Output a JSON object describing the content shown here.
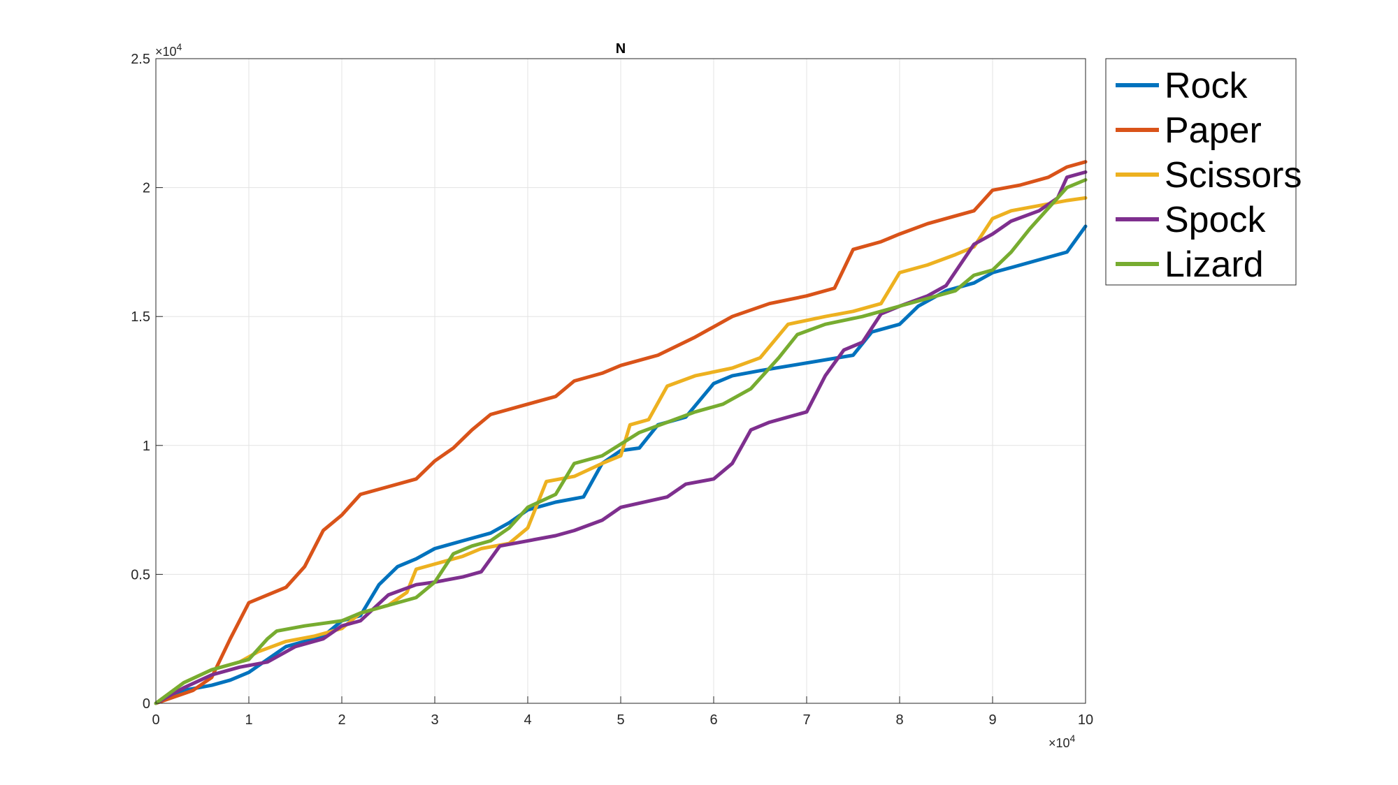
{
  "chart_data": {
    "type": "line",
    "title": "N",
    "xlabel": "",
    "ylabel": "",
    "xlim": [
      0,
      100000
    ],
    "ylim": [
      0,
      25000
    ],
    "x_ticks": [
      0,
      10000,
      20000,
      30000,
      40000,
      50000,
      60000,
      70000,
      80000,
      90000,
      100000
    ],
    "x_tick_labels": [
      "0",
      "1",
      "2",
      "3",
      "4",
      "5",
      "6",
      "7",
      "8",
      "9",
      "10"
    ],
    "y_ticks": [
      0,
      5000,
      10000,
      15000,
      20000,
      25000
    ],
    "y_tick_labels": [
      "0",
      "0.5",
      "1",
      "1.5",
      "2",
      "2.5"
    ],
    "x_exponent_base": "×10",
    "x_exponent_power": "4",
    "y_exponent_base": "×10",
    "y_exponent_power": "4",
    "grid": true,
    "legend_position": "outside-top-right",
    "series": [
      {
        "name": "Rock",
        "color": "#0072BD",
        "x": [
          0,
          3000,
          6000,
          8000,
          10000,
          12000,
          14000,
          16000,
          18000,
          20000,
          22000,
          24000,
          26000,
          28000,
          30000,
          33000,
          36000,
          38000,
          40000,
          43000,
          46000,
          48000,
          50000,
          52000,
          54000,
          57000,
          60000,
          62000,
          65000,
          70000,
          75000,
          77000,
          80000,
          82000,
          85000,
          88000,
          90000,
          92000,
          95000,
          98000,
          100000
        ],
        "y": [
          0,
          500,
          700,
          900,
          1200,
          1700,
          2200,
          2400,
          2600,
          3200,
          3400,
          4600,
          5300,
          5600,
          6000,
          6300,
          6600,
          7000,
          7500,
          7800,
          8000,
          9300,
          9800,
          9900,
          10800,
          11100,
          12400,
          12700,
          12900,
          13200,
          13500,
          14400,
          14700,
          15400,
          16000,
          16300,
          16700,
          16900,
          17200,
          17500,
          18500
        ]
      },
      {
        "name": "Paper",
        "color": "#D95319",
        "x": [
          0,
          4000,
          6000,
          8000,
          10000,
          12000,
          14000,
          16000,
          18000,
          20000,
          22000,
          25000,
          28000,
          30000,
          32000,
          34000,
          36000,
          40000,
          43000,
          45000,
          48000,
          50000,
          54000,
          58000,
          62000,
          66000,
          70000,
          73000,
          75000,
          78000,
          80000,
          83000,
          86000,
          88000,
          90000,
          93000,
          96000,
          98000,
          100000
        ],
        "y": [
          0,
          500,
          1000,
          2500,
          3900,
          4200,
          4500,
          5300,
          6700,
          7300,
          8100,
          8400,
          8700,
          9400,
          9900,
          10600,
          11200,
          11600,
          11900,
          12500,
          12800,
          13100,
          13500,
          14200,
          15000,
          15500,
          15800,
          16100,
          17600,
          17900,
          18200,
          18600,
          18900,
          19100,
          19900,
          20100,
          20400,
          20800,
          21000
        ]
      },
      {
        "name": "Scissors",
        "color": "#EDB120",
        "x": [
          0,
          3000,
          6000,
          9000,
          11000,
          14000,
          17000,
          20000,
          22000,
          25000,
          27000,
          28000,
          30000,
          33000,
          35000,
          38000,
          40000,
          42000,
          45000,
          48000,
          50000,
          51000,
          53000,
          55000,
          58000,
          62000,
          65000,
          68000,
          72000,
          75000,
          78000,
          80000,
          83000,
          86000,
          88000,
          90000,
          92000,
          95000,
          98000,
          100000
        ],
        "y": [
          0,
          800,
          1300,
          1600,
          2000,
          2400,
          2600,
          2900,
          3500,
          3800,
          4300,
          5200,
          5400,
          5700,
          6000,
          6200,
          6800,
          8600,
          8800,
          9300,
          9600,
          10800,
          11000,
          12300,
          12700,
          13000,
          13400,
          14700,
          15000,
          15200,
          15500,
          16700,
          17000,
          17400,
          17700,
          18800,
          19100,
          19300,
          19500,
          19600
        ]
      },
      {
        "name": "Spock",
        "color": "#7E2F8E",
        "x": [
          0,
          3000,
          6000,
          9000,
          12000,
          15000,
          18000,
          20000,
          22000,
          25000,
          28000,
          30000,
          33000,
          35000,
          37000,
          40000,
          43000,
          45000,
          48000,
          50000,
          55000,
          57000,
          60000,
          62000,
          64000,
          66000,
          68000,
          70000,
          72000,
          74000,
          76000,
          78000,
          80000,
          83000,
          85000,
          88000,
          90000,
          92000,
          95000,
          97000,
          98000,
          100000
        ],
        "y": [
          0,
          600,
          1100,
          1400,
          1600,
          2200,
          2500,
          3000,
          3200,
          4200,
          4600,
          4700,
          4900,
          5100,
          6100,
          6300,
          6500,
          6700,
          7100,
          7600,
          8000,
          8500,
          8700,
          9300,
          10600,
          10900,
          11100,
          11300,
          12700,
          13700,
          14000,
          15100,
          15400,
          15800,
          16200,
          17800,
          18200,
          18700,
          19100,
          19600,
          20400,
          20600
        ]
      },
      {
        "name": "Lizard",
        "color": "#77AC30",
        "x": [
          0,
          3000,
          6000,
          8000,
          10000,
          12000,
          13000,
          16000,
          20000,
          22000,
          24000,
          26000,
          28000,
          30000,
          32000,
          34000,
          36000,
          38000,
          40000,
          43000,
          45000,
          48000,
          52000,
          55000,
          58000,
          61000,
          64000,
          67000,
          69000,
          72000,
          76000,
          80000,
          83000,
          86000,
          88000,
          90000,
          92000,
          94000,
          96000,
          98000,
          100000
        ],
        "y": [
          0,
          800,
          1300,
          1500,
          1700,
          2500,
          2800,
          3000,
          3200,
          3500,
          3700,
          3900,
          4100,
          4700,
          5800,
          6100,
          6300,
          6800,
          7600,
          8100,
          9300,
          9600,
          10500,
          10900,
          11300,
          11600,
          12200,
          13400,
          14300,
          14700,
          15000,
          15400,
          15700,
          16000,
          16600,
          16800,
          17500,
          18400,
          19200,
          20000,
          20300
        ]
      }
    ]
  }
}
